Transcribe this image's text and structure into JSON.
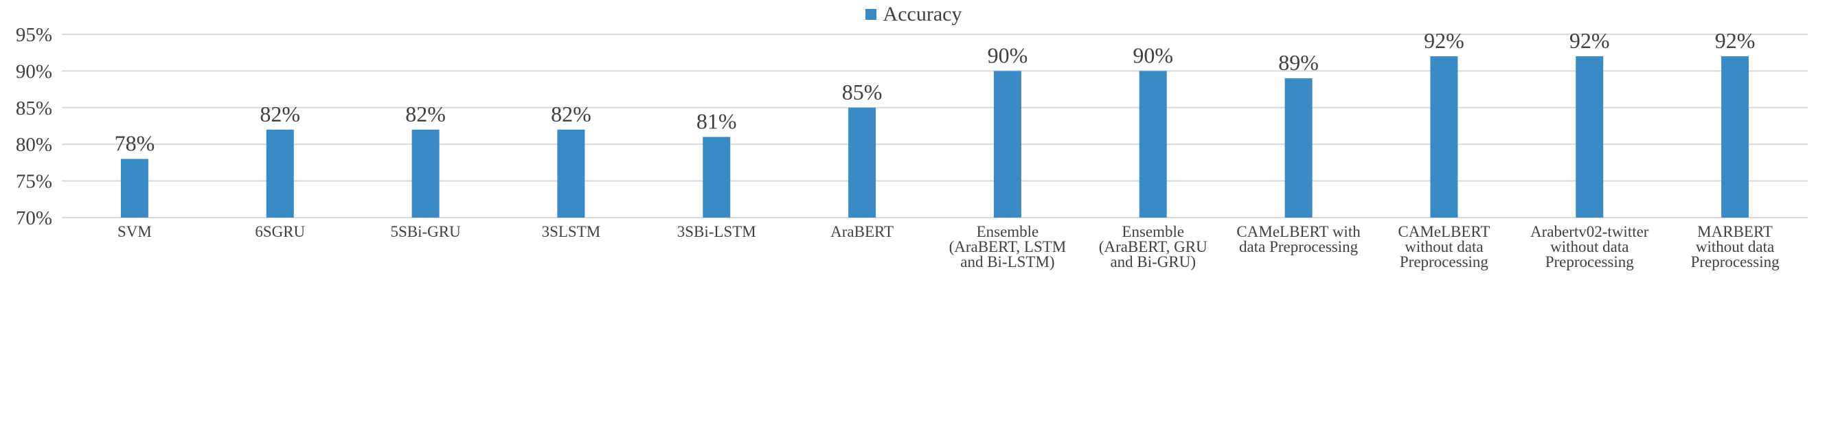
{
  "chart_data": {
    "type": "bar",
    "title": "",
    "xlabel": "",
    "ylabel": "",
    "legend": {
      "position": "top-center",
      "entries": [
        "Accuracy"
      ]
    },
    "series": [
      {
        "name": "Accuracy",
        "color": "#3a8ac6",
        "values": [
          78,
          82,
          82,
          82,
          81,
          85,
          90,
          90,
          89,
          92,
          92,
          92
        ]
      }
    ],
    "data_labels": [
      "78%",
      "82%",
      "82%",
      "82%",
      "81%",
      "85%",
      "90%",
      "90%",
      "89%",
      "92%",
      "92%",
      "92%"
    ],
    "categories": [
      [
        "SVM"
      ],
      [
        "6SGRU"
      ],
      [
        "5SBi-GRU"
      ],
      [
        "3SLSTM"
      ],
      [
        "3SBi-LSTM"
      ],
      [
        "AraBERT"
      ],
      [
        "Ensemble",
        "(AraBERT, LSTM",
        "and Bi-LSTM)"
      ],
      [
        "Ensemble",
        "(AraBERT, GRU",
        "and Bi-GRU)"
      ],
      [
        "CAMeLBERT with",
        "data Preprocessing"
      ],
      [
        "CAMeLBERT",
        "without data",
        "Preprocessing"
      ],
      [
        "Arabertv02-twitter",
        "without data",
        "Preprocessing"
      ],
      [
        "MARBERT",
        "without data",
        "Preprocessing"
      ]
    ],
    "ylim": [
      70,
      95
    ],
    "yticks": [
      70,
      75,
      80,
      85,
      90,
      95
    ],
    "ytick_labels": [
      "70%",
      "75%",
      "80%",
      "85%",
      "90%",
      "95%"
    ],
    "grid": true,
    "grid_color": "#d9d9d9"
  }
}
